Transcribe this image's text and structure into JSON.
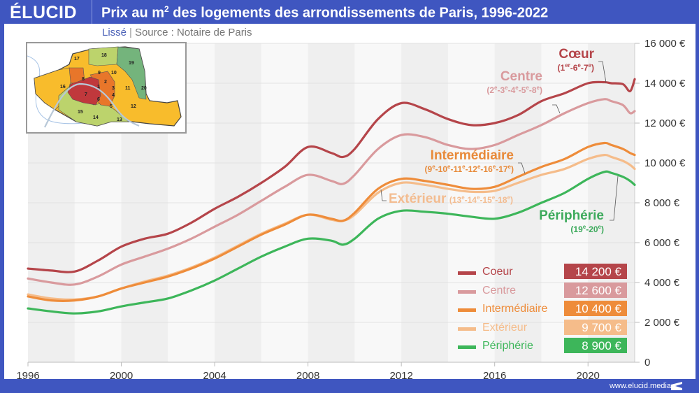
{
  "header": {
    "logo": "ÉLUCID",
    "title_pre": "Prix au m",
    "title_sup": "2",
    "title_post": " des logements des arrondissements de Paris, 1996-2022"
  },
  "subtitle": {
    "smoothing": "Lissé",
    "separator": "|",
    "source": "Source : Notaire de Paris"
  },
  "footer": {
    "url": "www.elucid.media"
  },
  "map": {
    "arrondissements": [
      {
        "n": "1",
        "group": "Coeur"
      },
      {
        "n": "6",
        "group": "Coeur"
      },
      {
        "n": "7",
        "group": "Coeur"
      },
      {
        "n": "2",
        "group": "Centre"
      },
      {
        "n": "3",
        "group": "Centre"
      },
      {
        "n": "4",
        "group": "Centre"
      },
      {
        "n": "5",
        "group": "Centre"
      },
      {
        "n": "8",
        "group": "Centre"
      },
      {
        "n": "9",
        "group": "Intermédiaire"
      },
      {
        "n": "10",
        "group": "Intermédiaire"
      },
      {
        "n": "11",
        "group": "Intermédiaire"
      },
      {
        "n": "12",
        "group": "Intermédiaire"
      },
      {
        "n": "16",
        "group": "Intermédiaire"
      },
      {
        "n": "17",
        "group": "Intermédiaire"
      },
      {
        "n": "13",
        "group": "Extérieur"
      },
      {
        "n": "14",
        "group": "Extérieur"
      },
      {
        "n": "15",
        "group": "Extérieur"
      },
      {
        "n": "18",
        "group": "Extérieur"
      },
      {
        "n": "19",
        "group": "Périphérie"
      },
      {
        "n": "20",
        "group": "Périphérie"
      }
    ],
    "group_colors": {
      "Coeur": "#c0383c",
      "Centre": "#e8762a",
      "Intermédiaire": "#f8bc2c",
      "Extérieur": "#bcd36c",
      "Périphérie": "#74b47c"
    }
  },
  "annotations": [
    {
      "name": "Cœur",
      "detail": [
        "1",
        "er",
        "-6",
        "e",
        "-7",
        "e"
      ],
      "color": "#b5454a"
    },
    {
      "name": "Centre",
      "detail": [
        "2",
        "e",
        "-3",
        "e",
        "-4",
        "e",
        "-5",
        "e",
        "-8",
        "e"
      ],
      "color": "#d99a9d"
    },
    {
      "name": "Intermédiaire",
      "detail": [
        "9",
        "e",
        "-10",
        "e",
        "-11",
        "e",
        "-12",
        "e",
        "-16",
        "e",
        "-17",
        "e"
      ],
      "color": "#e88a3a"
    },
    {
      "name": "Extérieur",
      "detail": [
        "13",
        "e",
        "-14",
        "e",
        "-15",
        "e",
        "-18",
        "e"
      ],
      "color": "#f3bc90"
    },
    {
      "name": "Périphérie",
      "detail": [
        "19",
        "e",
        "-20",
        "e"
      ],
      "color": "#3daa5c"
    }
  ],
  "legend": [
    {
      "label": "Coeur",
      "value": "14 200 €",
      "color": "#b5454a",
      "text_color": "#b5454a"
    },
    {
      "label": "Centre",
      "value": "12 600 €",
      "color": "#d99a9d",
      "text_color": "#d99a9d"
    },
    {
      "label": "Intermédiaire",
      "value": "10 400 €",
      "color": "#ee8c3a",
      "text_color": "#ee8c3a"
    },
    {
      "label": "Extérieur",
      "value": "9 700 €",
      "color": "#f5bc8a",
      "text_color": "#f5bc8a"
    },
    {
      "label": "Périphérie",
      "value": "8 900 €",
      "color": "#3db65a",
      "text_color": "#3db65a"
    }
  ],
  "chart_data": {
    "type": "line",
    "title": "Prix au m² des logements des arrondissements de Paris, 1996-2022",
    "subtitle": "Lissé | Source : Notaire de Paris",
    "xlabel": "",
    "ylabel": "",
    "xlim": [
      1996,
      2022
    ],
    "ylim": [
      0,
      16000
    ],
    "x_ticks": [
      1996,
      2000,
      2004,
      2008,
      2012,
      2016,
      2020
    ],
    "x_tick_labels": [
      "1996",
      "2000",
      "2004",
      "2008",
      "2012",
      "2016",
      "2020"
    ],
    "y_ticks": [
      0,
      2000,
      4000,
      6000,
      8000,
      10000,
      12000,
      14000,
      16000
    ],
    "y_tick_labels": [
      "0",
      "2 000 €",
      "4 000 €",
      "6 000 €",
      "8 000 €",
      "10 000 €",
      "12 000 €",
      "14 000 €",
      "16 000 €"
    ],
    "y_axis_position": "right",
    "grid": true,
    "legend_position": "bottom-right",
    "x": [
      1996,
      1997,
      1998,
      1999,
      2000,
      2001,
      2002,
      2003,
      2004,
      2005,
      2006,
      2007,
      2008,
      2009,
      2009.5,
      2010,
      2011,
      2012,
      2013,
      2014,
      2015,
      2016,
      2017,
      2018,
      2019,
      2020,
      2020.7,
      2021,
      2021.5,
      2021.8,
      2022
    ],
    "series": [
      {
        "name": "Coeur",
        "color": "#b5454a",
        "values": [
          4700,
          4600,
          4550,
          5100,
          5800,
          6200,
          6450,
          7000,
          7700,
          8300,
          9000,
          9800,
          10800,
          10500,
          10300,
          10700,
          12200,
          13000,
          12700,
          12200,
          11900,
          12000,
          12400,
          13100,
          13500,
          14000,
          14050,
          14000,
          13950,
          13600,
          14200
        ]
      },
      {
        "name": "Centre",
        "color": "#d99a9d",
        "values": [
          4200,
          4000,
          3900,
          4300,
          4900,
          5300,
          5700,
          6200,
          6800,
          7400,
          8100,
          8800,
          9400,
          9100,
          8950,
          9400,
          10700,
          11400,
          11300,
          10900,
          10700,
          10900,
          11400,
          11900,
          12500,
          13000,
          13200,
          13100,
          12900,
          12500,
          12600
        ]
      },
      {
        "name": "Intermédiaire",
        "color": "#ee8c3a",
        "values": [
          3300,
          3100,
          3100,
          3300,
          3700,
          4000,
          4300,
          4700,
          5200,
          5800,
          6400,
          6900,
          7400,
          7200,
          7100,
          7500,
          8700,
          9200,
          9100,
          8900,
          8700,
          8800,
          9300,
          9800,
          10200,
          10800,
          11000,
          10900,
          10700,
          10500,
          10400
        ]
      },
      {
        "name": "Extérieur",
        "color": "#f5bc8a",
        "values": [
          3400,
          3200,
          3150,
          3300,
          3700,
          4050,
          4350,
          4750,
          5250,
          5850,
          6450,
          6950,
          7400,
          7150,
          7100,
          7400,
          8500,
          9000,
          8900,
          8700,
          8550,
          8600,
          9000,
          9400,
          9700,
          10200,
          10400,
          10300,
          10100,
          9900,
          9700
        ]
      },
      {
        "name": "Périphérie",
        "color": "#3db65a",
        "values": [
          2700,
          2550,
          2450,
          2550,
          2800,
          3000,
          3200,
          3600,
          4100,
          4700,
          5300,
          5800,
          6200,
          6100,
          5900,
          6200,
          7200,
          7600,
          7550,
          7450,
          7300,
          7200,
          7500,
          8000,
          8500,
          9200,
          9550,
          9500,
          9300,
          9100,
          8900
        ]
      }
    ],
    "end_values": {
      "Coeur": 14200,
      "Centre": 12600,
      "Intermédiaire": 10400,
      "Extérieur": 9700,
      "Périphérie": 8900
    }
  }
}
